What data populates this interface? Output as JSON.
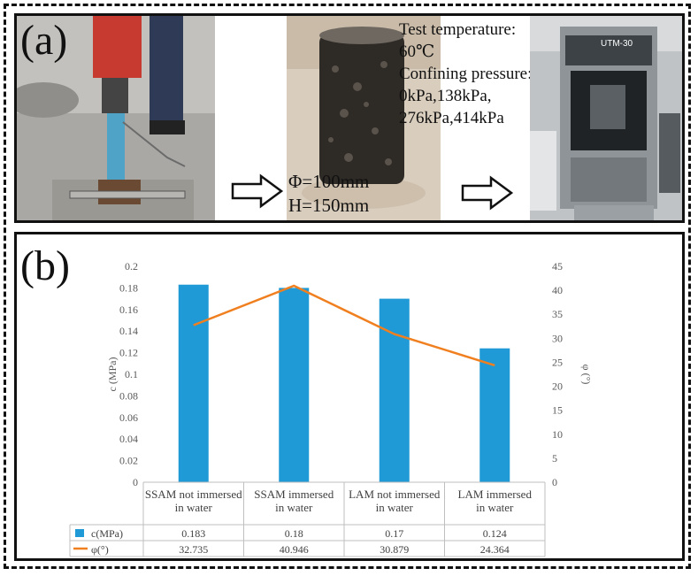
{
  "panel_a": {
    "label": "(a)",
    "specimen_dims": [
      "Φ=100mm",
      "H=150mm"
    ],
    "test_conditions": [
      "Test temperature:",
      "60℃",
      "Confining pressure:",
      "0kPa,138kPa,",
      "276kPa,414kPa"
    ],
    "machine_label": "UTM-30"
  },
  "panel_b": {
    "label": "(b)"
  },
  "chart_data": {
    "type": "bar+line",
    "categories": [
      [
        "SSAM not immersed",
        "in water"
      ],
      [
        "SSAM immersed",
        "in water"
      ],
      [
        "LAM not immersed",
        "in water"
      ],
      [
        "LAM immersed",
        "in water"
      ]
    ],
    "series": [
      {
        "name": "c(MPa)",
        "type": "bar",
        "axis": "left",
        "color": "#1f9ad6",
        "values": [
          0.183,
          0.18,
          0.17,
          0.124
        ],
        "labels": [
          "0.183",
          "0.18",
          "0.17",
          "0.124"
        ]
      },
      {
        "name": "φ(°)",
        "type": "line",
        "axis": "right",
        "color": "#f07f1f",
        "values": [
          32.735,
          40.946,
          30.879,
          24.364
        ],
        "labels": [
          "32.735",
          "40.946",
          "30.879",
          "24.364"
        ]
      }
    ],
    "ylabel": "c (MPa)",
    "y2label": "φ (°)",
    "ylim": [
      0,
      0.2
    ],
    "y2lim": [
      0,
      45
    ],
    "yticks": [
      "0",
      "0.02",
      "0.04",
      "0.06",
      "0.08",
      "0.1",
      "0.12",
      "0.14",
      "0.16",
      "0.18",
      "0.2"
    ],
    "y2ticks": [
      "0",
      "5",
      "10",
      "15",
      "20",
      "25",
      "30",
      "35",
      "40",
      "45"
    ],
    "grid": false,
    "legend": "data-table"
  }
}
